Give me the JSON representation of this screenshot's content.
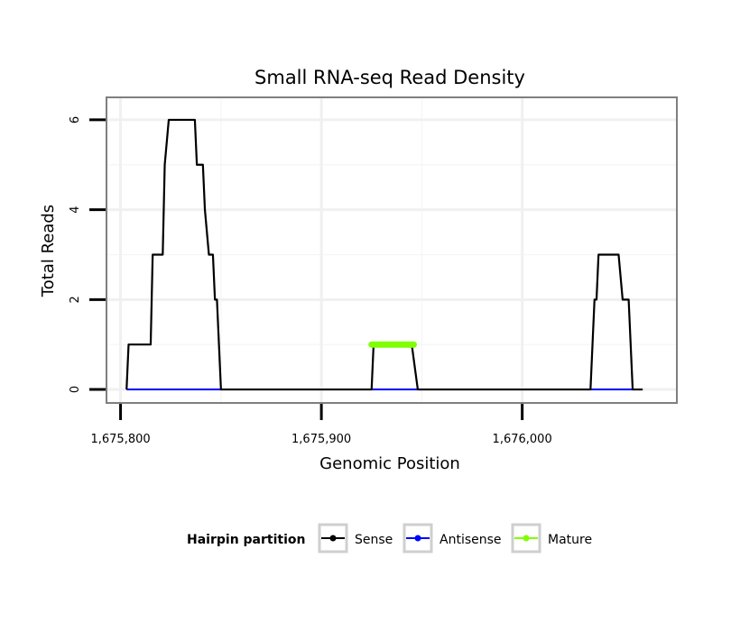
{
  "chart_data": {
    "type": "line",
    "title": "Small RNA-seq Read Density",
    "xlabel": "Genomic Position",
    "ylabel": "Total Reads",
    "xlim": [
      1675793,
      1676077
    ],
    "ylim": [
      -0.3,
      6.5
    ],
    "xticks": [
      1675800,
      1675900,
      1676000
    ],
    "xtick_labels": [
      "1,675,800",
      "1,675,900",
      "1,676,000"
    ],
    "yticks": [
      0,
      2,
      4,
      6
    ],
    "ytick_labels": [
      "0",
      "2",
      "4",
      "6"
    ],
    "grid": true,
    "legend": {
      "title": "Hairpin partition",
      "position": "bottom",
      "entries": [
        {
          "name": "Sense",
          "color": "#000000"
        },
        {
          "name": "Antisense",
          "color": "#0000ff"
        },
        {
          "name": "Mature",
          "color": "#7fff00"
        }
      ]
    },
    "series": [
      {
        "name": "Sense",
        "color": "#000000",
        "x": [
          1675803,
          1675804,
          1675815,
          1675816,
          1675821,
          1675822,
          1675824,
          1675828,
          1675832,
          1675835,
          1675837,
          1675838,
          1675841,
          1675842,
          1675844,
          1675845,
          1675846,
          1675847,
          1675848,
          1675849,
          1675850,
          1675925,
          1675926,
          1675929,
          1675945,
          1675948,
          1676034,
          1676036,
          1676037,
          1676038,
          1676048,
          1676050,
          1676051,
          1676053,
          1676055,
          1676056,
          1676060
        ],
        "y": [
          0,
          1,
          1,
          3,
          3,
          5,
          6,
          6,
          6,
          6,
          6,
          5,
          5,
          4,
          3,
          3,
          3,
          2,
          2,
          1,
          0,
          0,
          1,
          1,
          1,
          0,
          0,
          2,
          2,
          3,
          3,
          2,
          2,
          2,
          0,
          0,
          0
        ]
      },
      {
        "name": "Antisense",
        "color": "#0000ff",
        "x": [
          1675803,
          1676056
        ],
        "y": [
          0,
          0
        ]
      },
      {
        "name": "Mature",
        "color": "#7fff00",
        "x": [
          1675925,
          1675946
        ],
        "y": [
          1,
          1
        ]
      }
    ]
  }
}
